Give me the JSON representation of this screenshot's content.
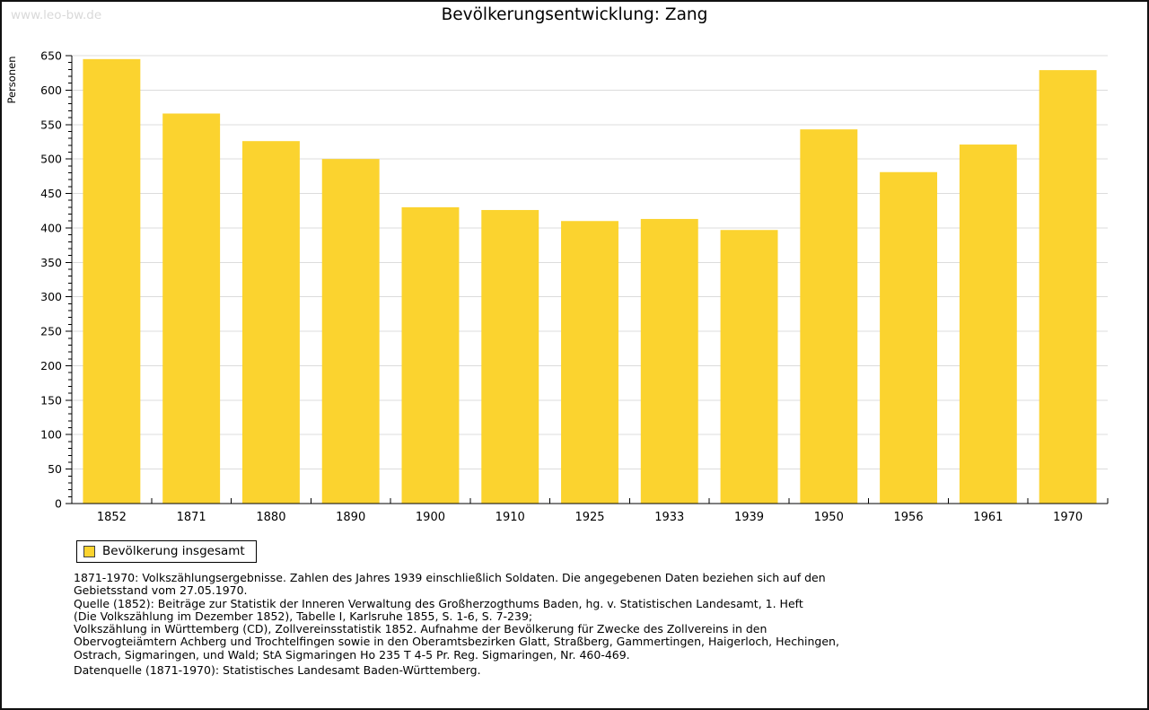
{
  "watermark": "www.leo-bw.de",
  "colors": {
    "bar": "#FBD32F",
    "bar_swatch_border": "#404040",
    "grid": "#DCDCDC",
    "axis": "#000000",
    "watermark_text": "#D9D9D9"
  },
  "legend": {
    "label": "Bevölkerung insgesamt"
  },
  "footnote_text": "1871-1970: Volkszählungsergebnisse. Zahlen des Jahres 1939 einschließlich Soldaten. Die angegebenen Daten beziehen sich auf den\nGebietsstand vom 27.05.1970.\nQuelle (1852): Beiträge zur Statistik der Inneren Verwaltung des Großherzogthums Baden, hg. v. Statistischen Landesamt, 1. Heft\n(Die Volkszählung im Dezember 1852), Tabelle I, Karlsruhe 1855, S. 1-6, S. 7-239;\nVolkszählung in Württemberg (CD), Zollvereinsstatistik 1852. Aufnahme der Bevölkerung für Zwecke des Zollvereins in den\nObervogteiämtern Achberg und Trochtelfingen sowie in den Oberamtsbezirken Glatt, Straßberg, Gammertingen, Haigerloch, Hechingen,\nOstrach, Sigmaringen, und Wald; StA Sigmaringen Ho 235 T 4-5 Pr. Reg. Sigmaringen, Nr. 460-469.",
  "datasource_text": "Datenquelle (1871-1970): Statistisches Landesamt Baden-Württemberg.",
  "chart_data": {
    "type": "bar",
    "title": "Bevölkerungsentwicklung: Zang",
    "xlabel": "",
    "ylabel": "Personen",
    "categories": [
      "1852",
      "1871",
      "1880",
      "1890",
      "1900",
      "1910",
      "1925",
      "1933",
      "1939",
      "1950",
      "1956",
      "1961",
      "1970"
    ],
    "series": [
      {
        "name": "Bevölkerung insgesamt",
        "values": [
          645,
          566,
          526,
          500,
          430,
          426,
          410,
          413,
          397,
          543,
          481,
          521,
          629
        ]
      }
    ],
    "ylim": [
      0,
      650
    ],
    "ytick_step": 50,
    "ytick_minor_step": 10,
    "grid": true,
    "legend_position": "bottom-left"
  }
}
